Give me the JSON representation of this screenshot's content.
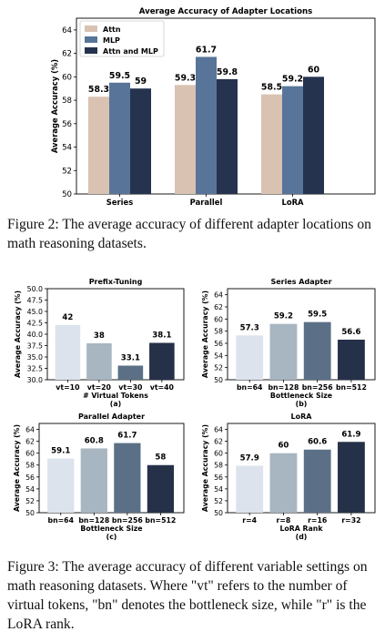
{
  "figures": {
    "figure2_caption": "Figure 2: The average accuracy of different adapter locations on math reasoning datasets.",
    "figure3_caption": "Figure 3: The average accuracy of different variable settings on math reasoning datasets. Where \"vt\" refers to the number of virtual tokens, \"bn\" denotes the bottleneck size, while \"r\" is the LoRA rank."
  },
  "colors": {
    "attn": "#d9c2b2",
    "mlp": "#587599",
    "attn_mlp": "#26334e",
    "shade1": "#dce3ec",
    "shade2": "#a7b6c1",
    "shade3": "#5b7086",
    "shade4": "#253148"
  },
  "chart_data": [
    {
      "id": "main",
      "type": "bar",
      "title": "Average Accuracy of Adapter Locations",
      "xlabel": "",
      "ylabel": "Average Accuracy (%)",
      "ylim": [
        50,
        65
      ],
      "yticks": [
        50,
        52,
        54,
        56,
        58,
        60,
        62,
        64
      ],
      "categories": [
        "Series",
        "Parallel",
        "LoRA"
      ],
      "series": [
        {
          "name": "Attn",
          "values": [
            58.3,
            59.3,
            58.5
          ]
        },
        {
          "name": "MLP",
          "values": [
            59.5,
            61.7,
            59.2
          ]
        },
        {
          "name": "Attn and MLP",
          "values": [
            59,
            59.8,
            60
          ]
        }
      ],
      "legend": "top-left",
      "grid": false
    },
    {
      "id": "a",
      "type": "bar",
      "title": "Prefix-Tuning",
      "xlabel": "# Virtual Tokens",
      "ylabel": "Average Accuracy (%)",
      "sublabel": "(a)",
      "ylim": [
        30,
        50
      ],
      "yticks": [
        30.0,
        32.5,
        35.0,
        37.5,
        40.0,
        42.5,
        45.0,
        47.5,
        50.0
      ],
      "ytick_labels": [
        "30.0",
        "32.5",
        "35.0",
        "37.5",
        "40.0",
        "42.5",
        "45.0",
        "47.5",
        "50.0"
      ],
      "categories": [
        "vt=10",
        "vt=20",
        "vt=30",
        "vt=40"
      ],
      "values": [
        42,
        38,
        33.1,
        38.1
      ],
      "grid": false
    },
    {
      "id": "b",
      "type": "bar",
      "title": "Series Adapter",
      "xlabel": "Bottleneck Size",
      "ylabel": "Average Accuracy (%)",
      "sublabel": "(b)",
      "ylim": [
        50,
        65
      ],
      "yticks": [
        50,
        52,
        54,
        56,
        58,
        60,
        62,
        64
      ],
      "categories": [
        "bn=64",
        "bn=128",
        "bn=256",
        "bn=512"
      ],
      "values": [
        57.3,
        59.2,
        59.5,
        56.6
      ],
      "grid": false
    },
    {
      "id": "c",
      "type": "bar",
      "title": "Parallel Adapter",
      "xlabel": "Bottleneck Size",
      "ylabel": "Average Accuracy (%)",
      "sublabel": "(c)",
      "ylim": [
        50,
        65
      ],
      "yticks": [
        50,
        52,
        54,
        56,
        58,
        60,
        62,
        64
      ],
      "categories": [
        "bn=64",
        "bn=128",
        "bn=256",
        "bn=512"
      ],
      "values": [
        59.1,
        60.8,
        61.7,
        58
      ],
      "grid": false
    },
    {
      "id": "d",
      "type": "bar",
      "title": "LoRA",
      "xlabel": "LoRA Rank",
      "ylabel": "Average Accuracy (%)",
      "sublabel": "(d)",
      "ylim": [
        50,
        65
      ],
      "yticks": [
        50,
        52,
        54,
        56,
        58,
        60,
        62,
        64
      ],
      "categories": [
        "r=4",
        "r=8",
        "r=16",
        "r=32"
      ],
      "values": [
        57.9,
        60,
        60.6,
        61.9
      ],
      "grid": false
    }
  ]
}
